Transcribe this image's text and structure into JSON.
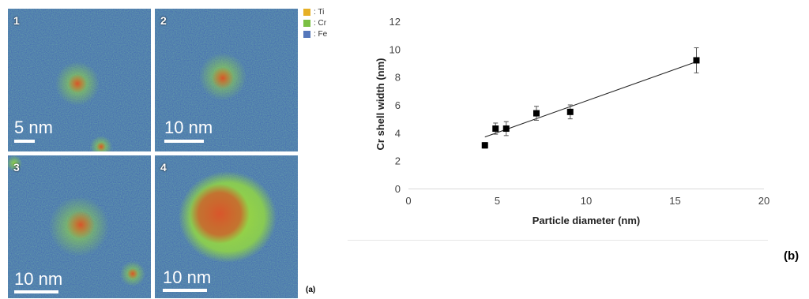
{
  "figure_a": {
    "label": "(a)",
    "panels": [
      {
        "number": "1",
        "scale": "5 nm"
      },
      {
        "number": "2",
        "scale": "10 nm"
      },
      {
        "number": "3",
        "scale": "10 nm"
      },
      {
        "number": "4",
        "scale": "10 nm"
      }
    ],
    "legend": [
      {
        "name": ": Ti",
        "color": "#e6b026"
      },
      {
        "name": ": Cr",
        "color": "#7bc043"
      },
      {
        "name": ": Fe",
        "color": "#5577bb"
      }
    ]
  },
  "figure_b": {
    "label": "(b)"
  },
  "chart_data": {
    "type": "scatter",
    "title": "",
    "xlabel": "Particle diameter (nm)",
    "ylabel": "Cr shell width (nm)",
    "xlim": [
      0,
      20
    ],
    "ylim": [
      0,
      12
    ],
    "x_ticks": [
      "0",
      "5",
      "10",
      "15",
      "20"
    ],
    "y_ticks": [
      "0",
      "2",
      "4",
      "6",
      "8",
      "10",
      "12"
    ],
    "grid": false,
    "marker": "square",
    "color": "#000000",
    "series": [
      {
        "points": [
          {
            "x": 4.3,
            "y": 3.1,
            "err": 0.2
          },
          {
            "x": 4.9,
            "y": 4.3,
            "err": 0.4
          },
          {
            "x": 5.5,
            "y": 4.3,
            "err": 0.5
          },
          {
            "x": 7.2,
            "y": 5.4,
            "err": 0.5
          },
          {
            "x": 9.1,
            "y": 5.5,
            "err": 0.5
          },
          {
            "x": 16.2,
            "y": 9.2,
            "err": 0.9
          }
        ]
      }
    ],
    "trendline": {
      "x": [
        4.3,
        16.2
      ],
      "y": [
        3.7,
        9.1
      ]
    }
  }
}
